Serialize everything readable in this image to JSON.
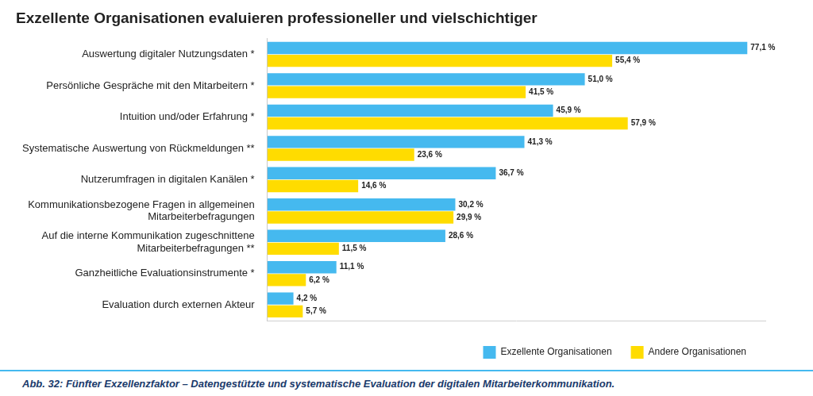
{
  "chart_data": {
    "type": "bar",
    "orientation": "horizontal",
    "title": "Exzellente Organisationen evaluieren professioneller und vielschichtiger",
    "caption": "Abb. 32: Fünfter Exzellenzfaktor – Datengestützte und systematische Evaluation der digitalen Mitarbeiterkommunikation.",
    "categories": [
      "Auswertung digitaler Nutzungsdaten *",
      "Persönliche Gespräche mit den Mitarbeitern *",
      "Intuition und/oder Erfahrung *",
      "Systematische Auswertung von Rückmeldungen **",
      "Nutzerumfragen in digitalen Kanälen *",
      "Kommunikationsbezogene Fragen in allgemeinen\nMitarbeiterbefragungen",
      "Auf die interne Kommunikation zugeschnittene\nMitarbeiterbefragungen **",
      "Ganzheitliche Evaluationsinstrumente *",
      "Evaluation durch externen Akteur"
    ],
    "series": [
      {
        "name": "Exzellente Organisationen",
        "color": "#45b9ef",
        "values": [
          77.1,
          51.0,
          45.9,
          41.3,
          36.7,
          30.2,
          28.6,
          11.1,
          4.2
        ],
        "value_labels": [
          "77,1 %",
          "51,0 %",
          "45,9 %",
          "41,3 %",
          "36,7 %",
          "30,2 %",
          "28,6 %",
          "11,1 %",
          "4,2 %"
        ]
      },
      {
        "name": "Andere Organisationen",
        "color": "#ffdc00",
        "values": [
          55.4,
          41.5,
          57.9,
          23.6,
          14.6,
          29.9,
          11.5,
          6.2,
          5.7
        ],
        "value_labels": [
          "55,4 %",
          "41,5 %",
          "57,9 %",
          "23,6 %",
          "14,6 %",
          "29,9 %",
          "11,5 %",
          "6,2 %",
          "5,7 %"
        ]
      }
    ],
    "xlim": [
      0,
      80
    ],
    "grid": false,
    "tick_labels": "y",
    "data_labels": true,
    "legend": "lower right"
  }
}
